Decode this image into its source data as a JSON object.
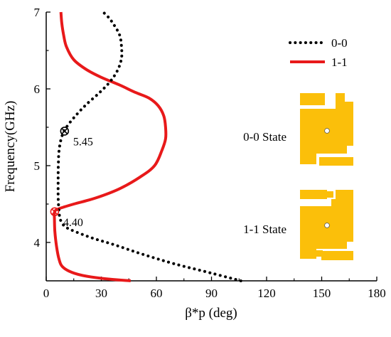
{
  "chart_data": {
    "type": "line",
    "xlabel": "β*p (deg)",
    "ylabel": "Frequency(GHz)",
    "xlim": [
      0,
      180
    ],
    "ylim": [
      3.5,
      7
    ],
    "xticks": [
      "0",
      "30",
      "60",
      "90",
      "120",
      "150",
      "180"
    ],
    "yticks": [
      "4",
      "5",
      "6",
      "7"
    ],
    "grid": false,
    "legend_position": "top-right",
    "series": [
      {
        "name": "0-0",
        "color": "#000000",
        "line_style": "dotted",
        "points": [
          [
            106,
            3.5
          ],
          [
            90,
            3.6
          ],
          [
            70,
            3.72
          ],
          [
            52,
            3.85
          ],
          [
            37,
            3.97
          ],
          [
            26,
            4.05
          ],
          [
            18,
            4.12
          ],
          [
            13,
            4.17
          ],
          [
            10,
            4.21
          ],
          [
            8,
            4.28
          ],
          [
            7.2,
            4.35
          ],
          [
            6.8,
            4.45
          ],
          [
            6.5,
            4.6
          ],
          [
            6.5,
            4.8
          ],
          [
            6.6,
            5.0
          ],
          [
            7,
            5.2
          ],
          [
            8.5,
            5.38
          ],
          [
            11,
            5.5
          ],
          [
            16,
            5.65
          ],
          [
            22,
            5.8
          ],
          [
            29,
            5.95
          ],
          [
            35,
            6.1
          ],
          [
            39,
            6.25
          ],
          [
            41,
            6.4
          ],
          [
            41,
            6.55
          ],
          [
            40,
            6.7
          ],
          [
            37,
            6.83
          ],
          [
            34,
            6.93
          ],
          [
            31,
            7.0
          ]
        ]
      },
      {
        "name": "1-1",
        "color": "#e8191a",
        "line_style": "solid",
        "points": [
          [
            46,
            3.5
          ],
          [
            35,
            3.52
          ],
          [
            22,
            3.56
          ],
          [
            14,
            3.61
          ],
          [
            9,
            3.68
          ],
          [
            7,
            3.78
          ],
          [
            5.6,
            3.95
          ],
          [
            4.7,
            4.15
          ],
          [
            4.5,
            4.3
          ],
          [
            4.6,
            4.4
          ],
          [
            7,
            4.44
          ],
          [
            15,
            4.5
          ],
          [
            27,
            4.58
          ],
          [
            40,
            4.7
          ],
          [
            51,
            4.85
          ],
          [
            59,
            5.0
          ],
          [
            63,
            5.2
          ],
          [
            65,
            5.35
          ],
          [
            65,
            5.5
          ],
          [
            64,
            5.65
          ],
          [
            61,
            5.78
          ],
          [
            56,
            5.88
          ],
          [
            50,
            5.94
          ],
          [
            47,
            5.97
          ],
          [
            40,
            6.05
          ],
          [
            30,
            6.15
          ],
          [
            22,
            6.25
          ],
          [
            15,
            6.38
          ],
          [
            11,
            6.55
          ],
          [
            9.5,
            6.7
          ],
          [
            8.5,
            6.85
          ],
          [
            8,
            7.0
          ]
        ]
      }
    ],
    "markers": [
      {
        "series": "0-0",
        "x": 10,
        "y": 5.45,
        "label": "5.45",
        "color": "#000000"
      },
      {
        "series": "1-1",
        "x": 4.6,
        "y": 4.4,
        "label": "4.40",
        "color": "#e8191a"
      }
    ],
    "insets": [
      {
        "label": "0-0 State",
        "fill": "#fbbf0a",
        "hole": "#ffffff"
      },
      {
        "label": "1-1 State",
        "fill": "#fbbf0a",
        "hole": "#ffffff"
      }
    ]
  }
}
